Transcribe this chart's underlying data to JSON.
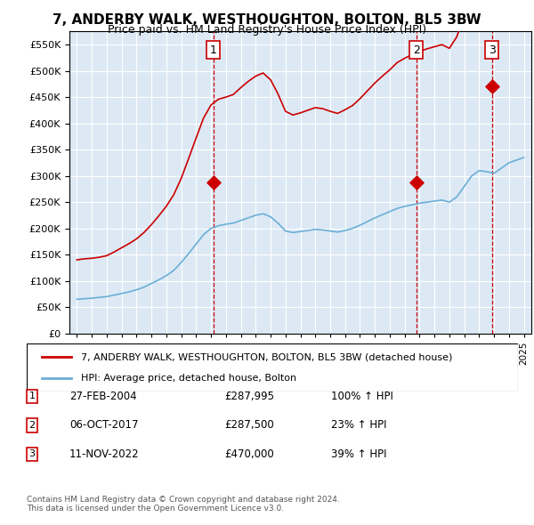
{
  "title": "7, ANDERBY WALK, WESTHOUGHTON, BOLTON, BL5 3BW",
  "subtitle": "Price paid vs. HM Land Registry's House Price Index (HPI)",
  "legend_line1": "7, ANDERBY WALK, WESTHOUGHTON, BOLTON, BL5 3BW (detached house)",
  "legend_line2": "HPI: Average price, detached house, Bolton",
  "footnote1": "Contains HM Land Registry data © Crown copyright and database right 2024.",
  "footnote2": "This data is licensed under the Open Government Licence v3.0.",
  "transactions": [
    {
      "num": 1,
      "date": "27-FEB-2004",
      "price": "£287,995",
      "change": "100% ↑ HPI",
      "year": 2004.15
    },
    {
      "num": 2,
      "date": "06-OCT-2017",
      "price": "£287,500",
      "change": "23% ↑ HPI",
      "year": 2017.77
    },
    {
      "num": 3,
      "date": "11-NOV-2022",
      "price": "£470,000",
      "change": "39% ↑ HPI",
      "year": 2022.86
    }
  ],
  "sale_prices": [
    287995,
    287500,
    470000
  ],
  "sale_years": [
    2004.15,
    2017.77,
    2022.86
  ],
  "hpi_color": "#6baed6",
  "price_color": "#cc0000",
  "background_color": "#dce9f5",
  "ylim": [
    0,
    575000
  ],
  "yticks": [
    0,
    50000,
    100000,
    150000,
    200000,
    250000,
    300000,
    350000,
    400000,
    450000,
    500000,
    550000
  ],
  "xlim_start": 1994.5,
  "xlim_end": 2025.5
}
